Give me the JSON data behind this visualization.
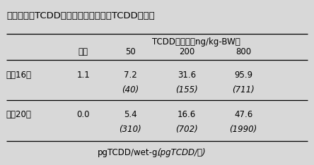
{
  "title": "表１　胎仔TCDD濃度と、母親からのTCDD移行量",
  "header_top": "TCDD投与量（ng/kg-BW）",
  "col_headers": [
    "対照",
    "50",
    "200",
    "800"
  ],
  "row1_label": "妊娠16日",
  "row1_values": [
    "1.1",
    "7.2",
    "31.6",
    "95.9"
  ],
  "row1_italic": [
    "",
    "(40)",
    "(155)",
    "(711)"
  ],
  "row2_label": "妊娠20日",
  "row2_values": [
    "0.0",
    "5.4",
    "16.6",
    "47.6"
  ],
  "row2_italic": [
    "",
    "(310)",
    "(702)",
    "(1990)"
  ],
  "footer_normal": "pgTCDD/wet-g,",
  "footer_italic": "(pgTCDD/胎)",
  "bg_color": "#d8d8d8",
  "font_size": 8.5,
  "title_font_size": 9.5
}
